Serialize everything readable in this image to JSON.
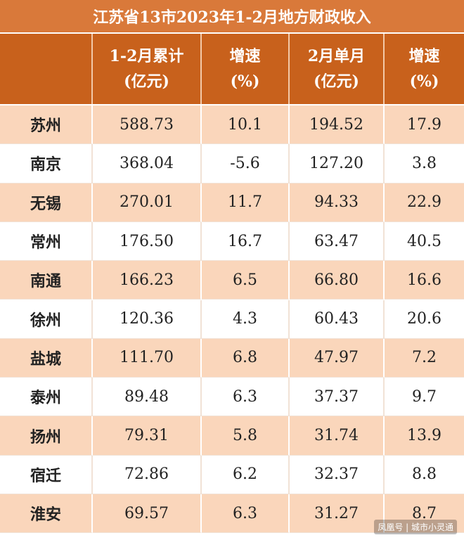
{
  "header": {
    "title": "江苏省13市2023年1-2月地方财政收入"
  },
  "table": {
    "columns": [
      [],
      [
        "1-2月累计",
        "(亿元)"
      ],
      [
        "增速",
        "(%)"
      ],
      [
        "2月单月",
        "(亿元)"
      ],
      [
        "增速",
        "(%)"
      ]
    ],
    "rows": [
      [
        "苏州",
        "588.73",
        "10.1",
        "194.52",
        "17.9"
      ],
      [
        "南京",
        "368.04",
        "-5.6",
        "127.20",
        "3.8"
      ],
      [
        "无锡",
        "270.01",
        "11.7",
        "94.33",
        "22.9"
      ],
      [
        "常州",
        "176.50",
        "16.7",
        "63.47",
        "40.5"
      ],
      [
        "南通",
        "166.23",
        "6.5",
        "66.80",
        "16.6"
      ],
      [
        "徐州",
        "120.36",
        "4.3",
        "60.43",
        "20.6"
      ],
      [
        "盐城",
        "111.70",
        "6.8",
        "47.97",
        "7.2"
      ],
      [
        "泰州",
        "89.48",
        "6.3",
        "37.37",
        "9.7"
      ],
      [
        "扬州",
        "79.31",
        "5.8",
        "31.74",
        "13.9"
      ],
      [
        "宿迁",
        "72.86",
        "6.2",
        "32.37",
        "8.8"
      ],
      [
        "淮安",
        "69.57",
        "6.3",
        "31.27",
        "8.7"
      ]
    ]
  },
  "footer": {
    "watermark": "凤凰号 | 城市小灵通"
  }
}
